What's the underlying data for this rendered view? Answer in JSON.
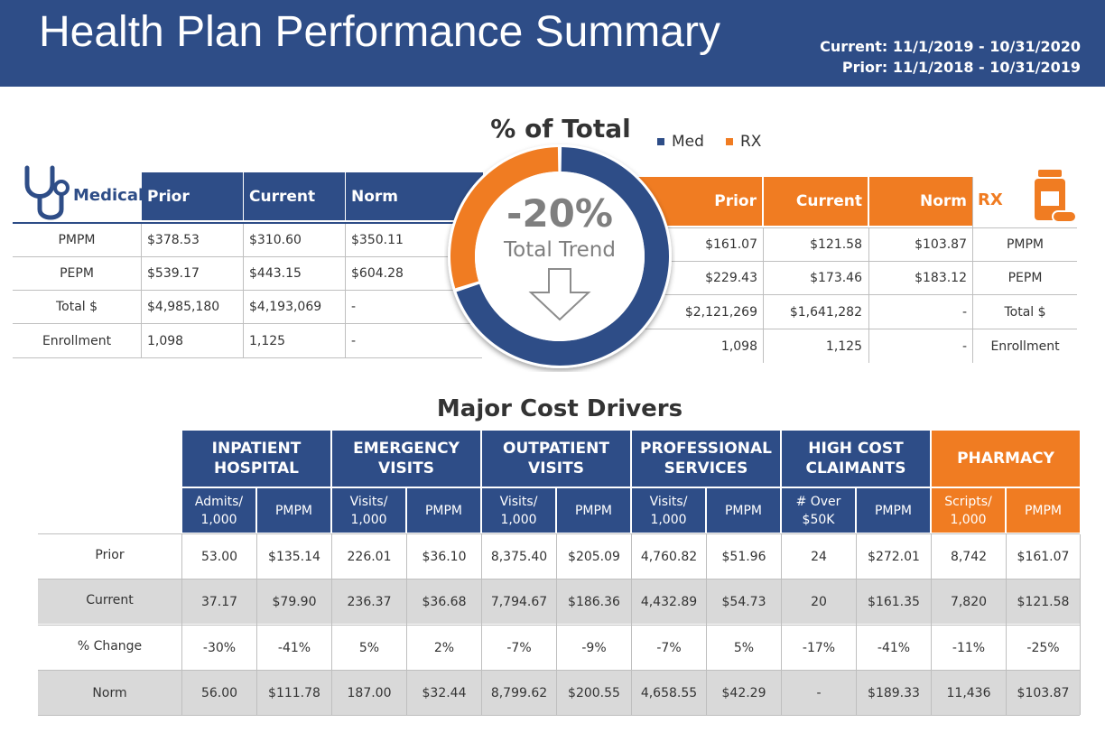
{
  "header": {
    "title": "Health Plan Performance Summary",
    "current_period": "Current: 11/1/2019 - 10/31/2020",
    "prior_period": "Prior: 11/1/2018 - 10/31/2019"
  },
  "medical": {
    "label": "Medical",
    "columns": [
      "Prior",
      "Current",
      "Norm"
    ],
    "rows": [
      {
        "label": "PMPM",
        "values": [
          "$378.53",
          "$310.60",
          "$350.11"
        ]
      },
      {
        "label": "PEPM",
        "values": [
          "$539.17",
          "$443.15",
          "$604.28"
        ]
      },
      {
        "label": "Total $",
        "values": [
          "$4,985,180",
          "$4,193,069",
          "-"
        ]
      },
      {
        "label": "Enrollment",
        "values": [
          "1,098",
          "1,125",
          "-"
        ]
      }
    ]
  },
  "rx": {
    "label": "RX",
    "columns": [
      "Prior",
      "Current",
      "Norm"
    ],
    "rows": [
      {
        "label": "PMPM",
        "values": [
          "$161.07",
          "$121.58",
          "$103.87"
        ]
      },
      {
        "label": "PEPM",
        "values": [
          "$229.43",
          "$173.46",
          "$183.12"
        ]
      },
      {
        "label": "Total $",
        "values": [
          "$2,121,269",
          "$1,641,282",
          "-"
        ]
      },
      {
        "label": "Enrollment",
        "values": [
          "1,098",
          "1,125",
          "-"
        ]
      }
    ]
  },
  "chart_data": {
    "type": "pie",
    "title": "% of Total",
    "legend": [
      {
        "name": "Med",
        "color": "#2e4d87"
      },
      {
        "name": "RX",
        "color": "#f07c22"
      }
    ],
    "values": [
      70,
      30
    ],
    "center_value": "-20%",
    "center_label": "Total Trend"
  },
  "drivers": {
    "title": "Major Cost Drivers",
    "groups": [
      {
        "name": "INPATIENT HOSPITAL",
        "sub": [
          "Admits/ 1,000",
          "PMPM"
        ]
      },
      {
        "name": "EMERGENCY VISITS",
        "sub": [
          "Visits/ 1,000",
          "PMPM"
        ]
      },
      {
        "name": "OUTPATIENT VISITS",
        "sub": [
          "Visits/ 1,000",
          "PMPM"
        ]
      },
      {
        "name": "PROFESSIONAL SERVICES",
        "sub": [
          "Visits/ 1,000",
          "PMPM"
        ]
      },
      {
        "name": "HIGH COST CLAIMANTS",
        "sub": [
          "# Over $50K",
          "PMPM"
        ]
      },
      {
        "name": "PHARMACY",
        "sub": [
          "Scripts/ 1,000",
          "PMPM"
        ]
      }
    ],
    "rows": [
      {
        "label": "Prior",
        "values": [
          "53.00",
          "$135.14",
          "226.01",
          "$36.10",
          "8,375.40",
          "$205.09",
          "4,760.82",
          "$51.96",
          "24",
          "$272.01",
          "8,742",
          "$161.07"
        ]
      },
      {
        "label": "Current",
        "values": [
          "37.17",
          "$79.90",
          "236.37",
          "$36.68",
          "7,794.67",
          "$186.36",
          "4,432.89",
          "$54.73",
          "20",
          "$161.35",
          "7,820",
          "$121.58"
        ]
      },
      {
        "label": "% Change",
        "values": [
          "-30%",
          "-41%",
          "5%",
          "2%",
          "-7%",
          "-9%",
          "-7%",
          "5%",
          "-17%",
          "-41%",
          "-11%",
          "-25%"
        ]
      },
      {
        "label": "Norm",
        "values": [
          "56.00",
          "$111.78",
          "187.00",
          "$32.44",
          "8,799.62",
          "$200.55",
          "4,658.55",
          "$42.29",
          "-",
          "$189.33",
          "11,436",
          "$103.87"
        ]
      }
    ]
  }
}
